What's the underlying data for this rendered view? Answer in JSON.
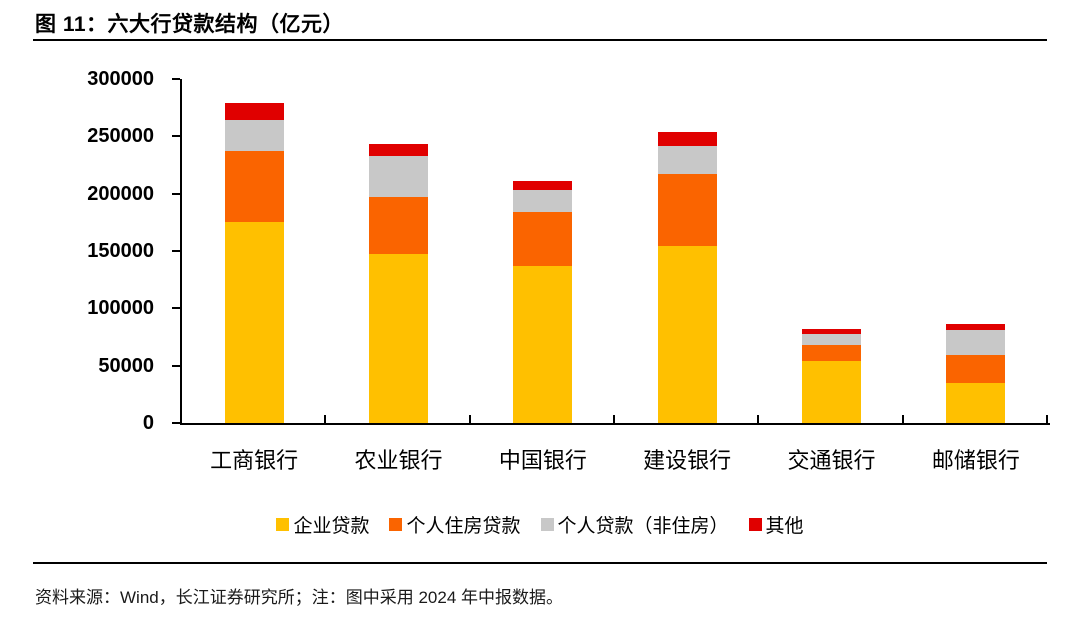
{
  "figure": {
    "title": "图 11：六大行贷款结构（亿元）",
    "source_note": "资料来源：Wind，长江证券研究所；注：图中采用 2024 年中报数据。"
  },
  "chart_data": {
    "type": "bar",
    "stacked": true,
    "title": "六大行贷款结构（亿元）",
    "unit": "亿元",
    "categories": [
      "工商银行",
      "农业银行",
      "中国银行",
      "建设银行",
      "交通银行",
      "邮储银行"
    ],
    "series": [
      {
        "name": "企业贷款",
        "color": "#FFC000",
        "values": [
          175000,
          147000,
          137000,
          154000,
          54000,
          35000
        ]
      },
      {
        "name": "个人住房贷款",
        "color": "#FA6400",
        "values": [
          62000,
          50000,
          47000,
          63000,
          14000,
          24000
        ]
      },
      {
        "name": "个人贷款（非住房）",
        "color": "#C8C8C8",
        "values": [
          27000,
          36000,
          19000,
          25000,
          10000,
          22000
        ]
      },
      {
        "name": "其他",
        "color": "#E00000",
        "values": [
          15000,
          10000,
          8000,
          12000,
          4000,
          5500
        ]
      }
    ],
    "totals": [
      279000,
      243000,
      211000,
      254000,
      82000,
      86500
    ],
    "ylim": [
      0,
      300000
    ],
    "yticks": [
      0,
      50000,
      100000,
      150000,
      200000,
      250000,
      300000
    ],
    "grid": false,
    "legend_position": "bottom",
    "axis_color": "#000000",
    "background_color": "#FFFFFF"
  }
}
